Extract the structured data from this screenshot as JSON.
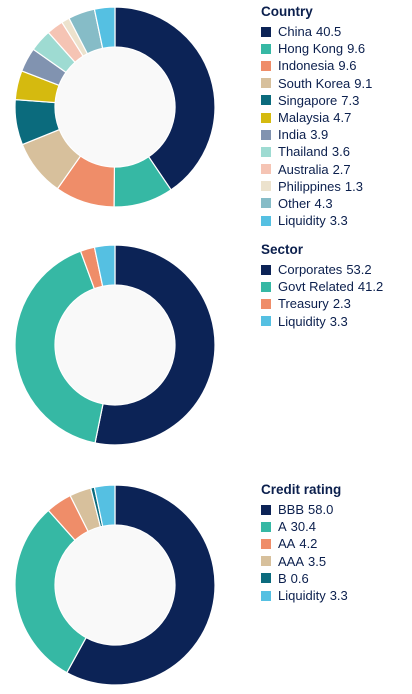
{
  "chart_data": [
    {
      "type": "pie",
      "donut": true,
      "title": "Country",
      "series": [
        {
          "name": "China",
          "value": 40.5,
          "color": "#0c2356"
        },
        {
          "name": "Hong Kong",
          "value": 9.6,
          "color": "#36b8a4"
        },
        {
          "name": "Indonesia",
          "value": 9.6,
          "color": "#ef8d69"
        },
        {
          "name": "South Korea",
          "value": 9.1,
          "color": "#d7c09c"
        },
        {
          "name": "Singapore",
          "value": 7.3,
          "color": "#0b6b7d"
        },
        {
          "name": "Malaysia",
          "value": 4.7,
          "color": "#d5ba0f"
        },
        {
          "name": "India",
          "value": 3.9,
          "color": "#8193b0"
        },
        {
          "name": "Thailand",
          "value": 3.6,
          "color": "#9edbd2"
        },
        {
          "name": "Australia",
          "value": 2.7,
          "color": "#f5c4b4"
        },
        {
          "name": "Philippines",
          "value": 1.3,
          "color": "#ece2cd"
        },
        {
          "name": "Other",
          "value": 4.3,
          "color": "#86bcc7"
        },
        {
          "name": "Liquidity",
          "value": 3.3,
          "color": "#55c0e2"
        }
      ]
    },
    {
      "type": "pie",
      "donut": true,
      "title": "Sector",
      "series": [
        {
          "name": "Corporates",
          "value": 53.2,
          "color": "#0c2356"
        },
        {
          "name": "Govt Related",
          "value": 41.2,
          "color": "#36b8a4"
        },
        {
          "name": "Treasury",
          "value": 2.3,
          "color": "#ef8d69"
        },
        {
          "name": "Liquidity",
          "value": 3.3,
          "color": "#55c0e2"
        }
      ]
    },
    {
      "type": "pie",
      "donut": true,
      "title": "Credit rating",
      "series": [
        {
          "name": "BBB",
          "value": 58.0,
          "color": "#0c2356"
        },
        {
          "name": "A",
          "value": 30.4,
          "color": "#36b8a4"
        },
        {
          "name": "AA",
          "value": 4.2,
          "color": "#ef8d69"
        },
        {
          "name": "AAA",
          "value": 3.5,
          "color": "#d7c09c"
        },
        {
          "name": "B",
          "value": 0.6,
          "color": "#0b6b7d"
        },
        {
          "name": "Liquidity",
          "value": 3.3,
          "color": "#55c0e2"
        }
      ]
    }
  ]
}
